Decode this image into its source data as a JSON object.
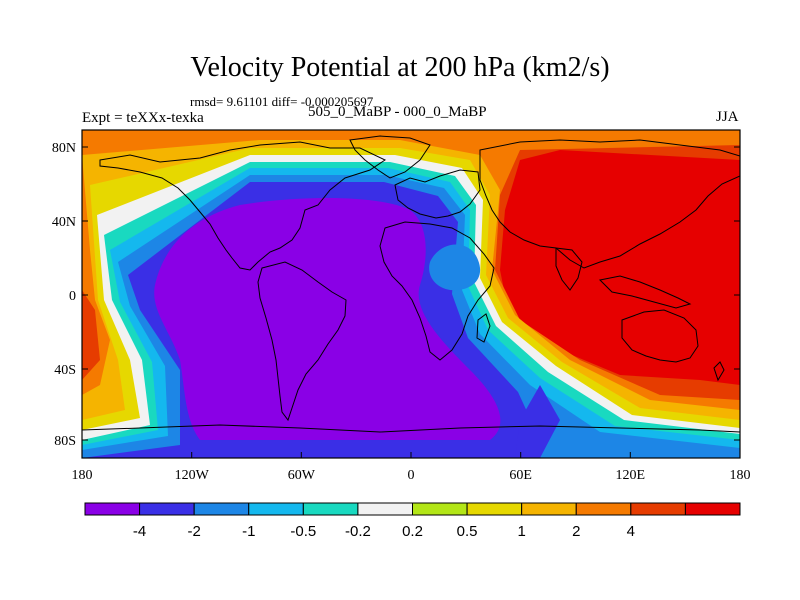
{
  "plot": {
    "title": "Velocity Potential at 200 hPa (km2/s)",
    "stats": "rmsd= 9.61101 diff= -0.000205697",
    "expt": "Expt = teXXx-texka",
    "cases": "505_0_MaBP - 000_0_MaBP",
    "season": "JJA"
  },
  "map_data": {
    "type": "contour-map",
    "variable": "velocity potential difference",
    "level": "200 hPa",
    "units": "km2/s",
    "lat_range": [
      -90,
      90
    ],
    "lon_range": [
      -180,
      180
    ],
    "lat_ticks": [
      "80N",
      "40N",
      "0",
      "40S",
      "80S"
    ],
    "lon_ticks": [
      "180",
      "120W",
      "60W",
      "0",
      "60E",
      "120E",
      "180"
    ]
  },
  "colorbar": {
    "colors": [
      "#8a00e6",
      "#3a2fe6",
      "#1d86e6",
      "#14b8ee",
      "#19d9c0",
      "#f2f2f2",
      "#b3e617",
      "#e6d800",
      "#f5b400",
      "#f57a00",
      "#e63c00",
      "#e60000"
    ],
    "labels": [
      "-4",
      "-2",
      "-1",
      "-0.5",
      "-0.2",
      "0.2",
      "0.5",
      "1",
      "2",
      "4"
    ]
  }
}
